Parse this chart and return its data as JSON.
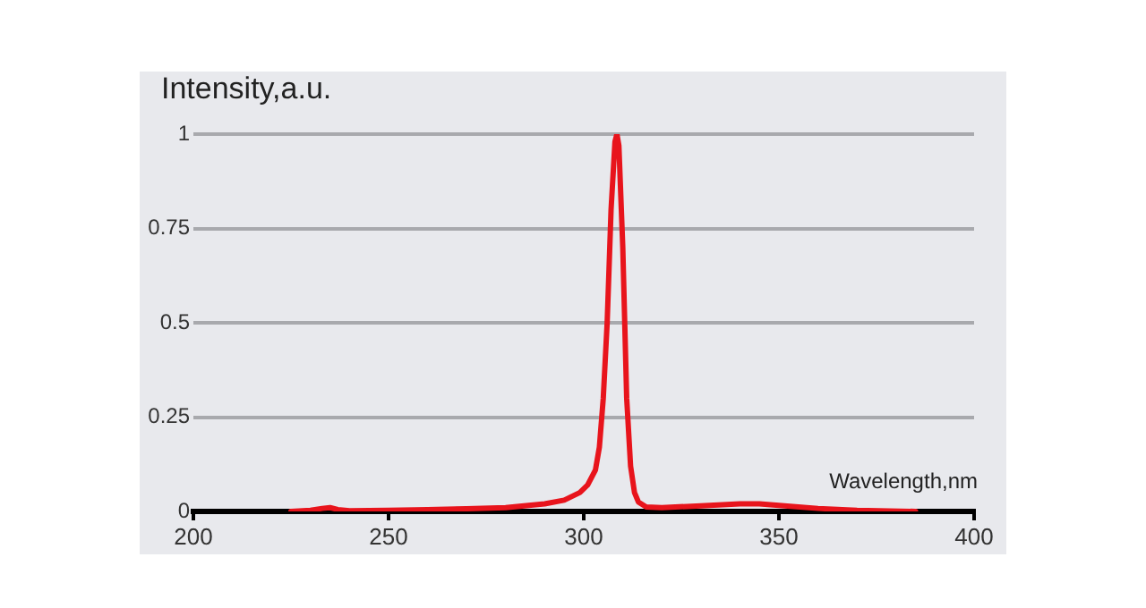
{
  "chart_data": {
    "type": "line",
    "xlabel": "Wavelength,nm",
    "ylabel": "Intensity,a.u.",
    "x": [
      225,
      230,
      233,
      235,
      237,
      240,
      250,
      260,
      270,
      280,
      290,
      295,
      299,
      301,
      303,
      304,
      305,
      306,
      307,
      308,
      308.5,
      309,
      310,
      310.5,
      311,
      312,
      313,
      314,
      316,
      320,
      330,
      340,
      345,
      350,
      360,
      370,
      385
    ],
    "series": [
      {
        "color": "#e8141c",
        "values": [
          0,
          0.003,
          0.008,
          0.01,
          0.005,
          0.002,
          0.003,
          0.005,
          0.007,
          0.01,
          0.02,
          0.03,
          0.05,
          0.07,
          0.11,
          0.17,
          0.3,
          0.5,
          0.8,
          0.98,
          1,
          0.97,
          0.7,
          0.5,
          0.3,
          0.12,
          0.05,
          0.025,
          0.012,
          0.01,
          0.015,
          0.02,
          0.02,
          0.016,
          0.008,
          0.003,
          0
        ]
      }
    ],
    "xlim": [
      200,
      400
    ],
    "xticks": [
      200,
      250,
      300,
      350,
      400
    ],
    "ylim": [
      0,
      1
    ],
    "yticks": [
      0,
      0.25,
      0.5,
      0.75,
      1
    ],
    "grid": "y",
    "legend": false,
    "marker": "none",
    "line_style": "solid"
  }
}
